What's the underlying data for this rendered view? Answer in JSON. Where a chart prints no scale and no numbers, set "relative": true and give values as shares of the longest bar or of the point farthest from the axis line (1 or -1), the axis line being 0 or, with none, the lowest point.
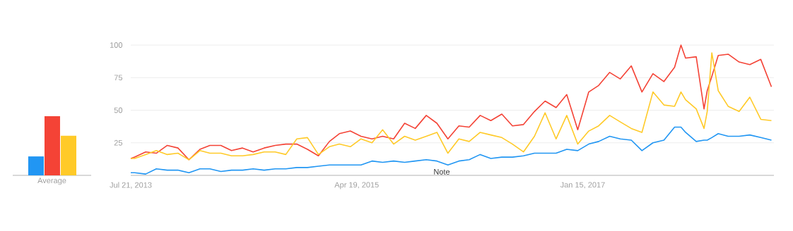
{
  "chart_data": [
    {
      "type": "bar",
      "relative": true,
      "xlabel": "Average",
      "categories": [
        null,
        null,
        null
      ],
      "values": [
        0.32,
        1,
        0.67
      ],
      "colors": [
        "#2196f3",
        "#f44336",
        "#ffca28"
      ]
    },
    {
      "type": "line",
      "marker": "none",
      "grid": "y",
      "ylim": [
        0,
        100
      ],
      "yticks": [
        25,
        50,
        75,
        100
      ],
      "xlim": [
        "2013-07-21",
        "2018-07-08"
      ],
      "xticks": [
        {
          "value": "2013-07-21",
          "label": "Jul 21, 2013"
        },
        {
          "value": "2015-04-19",
          "label": "Apr 19, 2015"
        },
        {
          "value": "2017-01-15",
          "label": "Jan 15, 2017"
        }
      ],
      "annotations": [
        "Note"
      ],
      "x": [
        "2013-07-21",
        "2013-08",
        "2013-09",
        "2013-10",
        "2013-11",
        "2013-12",
        "2014-01",
        "2014-02",
        "2014-03",
        "2014-04",
        "2014-05",
        "2014-06",
        "2014-07",
        "2014-08",
        "2014-09",
        "2014-10",
        "2014-11",
        "2014-12",
        "2015-01",
        "2015-02",
        "2015-03",
        "2015-04",
        "2015-05",
        "2015-06",
        "2015-07",
        "2015-08",
        "2015-09",
        "2015-10",
        "2015-11",
        "2015-12",
        "2016-01",
        "2016-02",
        "2016-03",
        "2016-04",
        "2016-05",
        "2016-06",
        "2016-07",
        "2016-08",
        "2016-09",
        "2016-10",
        "2016-11",
        "2016-12",
        "2017-01",
        "2017-02",
        "2017-03",
        "2017-04",
        "2017-05",
        "2017-06",
        "2017-07",
        "2017-08",
        "2017-09",
        "2017-10",
        "2017-10-19",
        "2017-11",
        "2017-12",
        "2017-12-23",
        "2018-01",
        "2018-01-14",
        "2018-02",
        "2018-03",
        "2018-04",
        "2018-05",
        "2018-06",
        "2018-07"
      ],
      "series": [
        {
          "color": "#2196f3",
          "values": [
            2,
            2,
            1,
            5,
            4,
            4,
            2,
            5,
            5,
            3,
            4,
            4,
            5,
            4,
            5,
            5,
            6,
            6,
            7,
            8,
            8,
            8,
            8,
            11,
            10,
            11,
            10,
            11,
            12,
            11,
            8,
            11,
            12,
            16,
            13,
            14,
            14,
            15,
            17,
            17,
            17,
            20,
            19,
            24,
            26,
            30,
            28,
            27,
            19,
            25,
            27,
            37,
            37,
            33,
            26,
            27,
            27,
            29,
            32,
            30,
            30,
            31,
            29,
            27
          ]
        },
        {
          "color": "#f44336",
          "values": [
            13,
            14,
            18,
            17,
            23,
            21,
            12,
            20,
            23,
            23,
            19,
            21,
            18,
            21,
            23,
            24,
            24,
            20,
            15,
            26,
            32,
            34,
            30,
            28,
            30,
            28,
            40,
            36,
            46,
            40,
            28,
            38,
            37,
            46,
            42,
            47,
            38,
            39,
            49,
            57,
            52,
            62,
            35,
            64,
            69,
            79,
            74,
            84,
            64,
            78,
            72,
            83,
            100,
            90,
            91,
            51,
            65,
            76,
            92,
            93,
            87,
            85,
            89,
            68
          ]
        },
        {
          "color": "#ffca28",
          "values": [
            13,
            13,
            16,
            19,
            16,
            17,
            12,
            19,
            17,
            17,
            15,
            15,
            16,
            18,
            18,
            16,
            28,
            29,
            16,
            22,
            24,
            22,
            28,
            25,
            35,
            24,
            30,
            27,
            30,
            33,
            17,
            28,
            26,
            33,
            31,
            29,
            24,
            18,
            30,
            48,
            28,
            46,
            24,
            34,
            38,
            46,
            41,
            36,
            33,
            64,
            54,
            53,
            64,
            58,
            51,
            36,
            49,
            94,
            65,
            53,
            49,
            60,
            43,
            42
          ]
        }
      ]
    }
  ]
}
